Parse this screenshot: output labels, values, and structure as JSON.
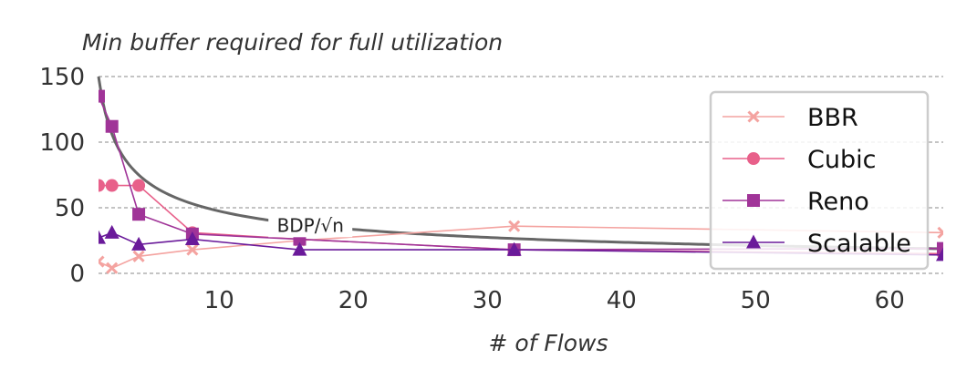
{
  "chart_data": {
    "type": "line",
    "title": "",
    "ylabel": "Min buffer required for full utilization",
    "xlabel": "# of Flows",
    "xlim": [
      1,
      64
    ],
    "ylim": [
      0,
      150
    ],
    "xticks": [
      10,
      20,
      30,
      40,
      50,
      60
    ],
    "yticks": [
      0,
      50,
      100,
      150
    ],
    "grid": "horizontal-dashed",
    "legend_position": "top-right",
    "x": [
      1,
      2,
      4,
      8,
      16,
      32,
      64
    ],
    "series": [
      {
        "name": "BBR",
        "color": "#f4a3a0",
        "marker": "x",
        "values": [
          9,
          4,
          13,
          18,
          25,
          36,
          31
        ]
      },
      {
        "name": "Cubic",
        "color": "#e8608a",
        "marker": "circle",
        "values": [
          67,
          67,
          67,
          31,
          26,
          18,
          15
        ]
      },
      {
        "name": "Reno",
        "color": "#a03498",
        "marker": "square",
        "values": [
          135,
          112,
          45,
          30,
          26,
          18,
          19
        ]
      },
      {
        "name": "Scalable",
        "color": "#6a1a9a",
        "marker": "triangle",
        "values": [
          27,
          31,
          22,
          26,
          18,
          18,
          14
        ]
      }
    ],
    "reference_curve": {
      "label": "BDP/√n",
      "color": "#666666",
      "numerator": 150
    }
  }
}
